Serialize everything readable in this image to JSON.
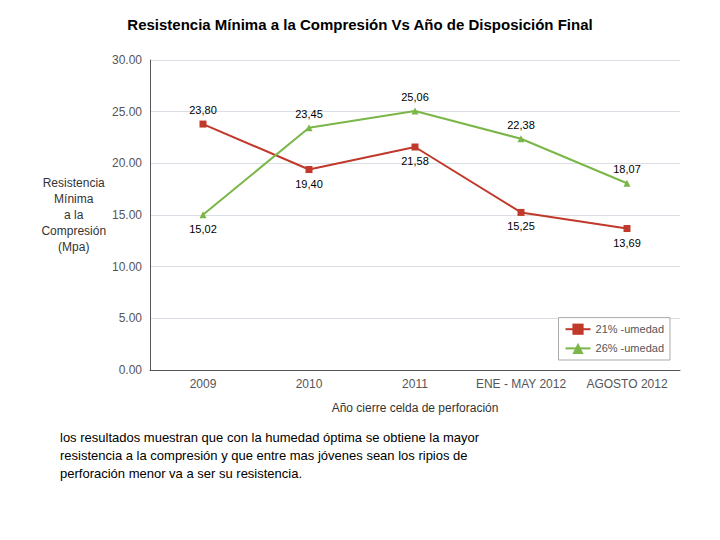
{
  "chart_data": {
    "type": "line",
    "title": "Resistencia Mínima a la Compresión Vs Año de Disposición Final",
    "xlabel": "Año cierre celda de perforación",
    "ylabel": "Resistencia\nMínima\na la\nCompresión\n(Mpa)",
    "categories": [
      "2009",
      "2010",
      "2011",
      "ENE - MAY 2012",
      "AGOSTO 2012"
    ],
    "series": [
      {
        "name": "21% -umedad",
        "color": "#c0392b",
        "marker": "square",
        "values": [
          23.8,
          19.4,
          21.58,
          15.25,
          13.69
        ],
        "value_labels": [
          "23,80",
          "19,40",
          "21,58",
          "15,25",
          "13,69"
        ]
      },
      {
        "name": "26% -umedad",
        "color": "#7ab648",
        "marker": "triangle",
        "values": [
          15.02,
          23.45,
          25.06,
          22.38,
          18.07
        ],
        "value_labels": [
          "15,02",
          "23,45",
          "25,06",
          "22,38",
          "18,07"
        ]
      }
    ],
    "ylim": [
      0,
      30
    ],
    "yticks": [
      {
        "value": 0,
        "label": "0.00"
      },
      {
        "value": 5,
        "label": "5.00"
      },
      {
        "value": 10,
        "label": "10.00"
      },
      {
        "value": 15,
        "label": "15.00"
      },
      {
        "value": 20,
        "label": "20.00"
      },
      {
        "value": 25,
        "label": "25.00"
      },
      {
        "value": 30,
        "label": "30.00"
      }
    ],
    "grid": true,
    "legend": "lower right",
    "data_labels": true,
    "annotations": [
      "los resultados muestran que con la humedad óptima se obtiene la mayor\nresistencia a la compresión y que entre mas jóvenes sean los ripios de\nperforación menor va a ser su resistencia."
    ]
  }
}
